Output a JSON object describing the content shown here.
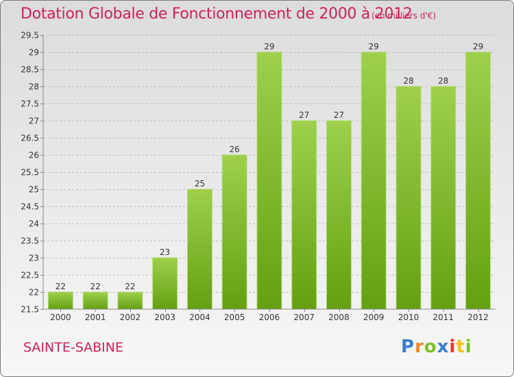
{
  "header": {
    "title": "Dotation Globale de Fonctionnement de 2000 à 2012",
    "subtitle": "(en milliers d'€)"
  },
  "footer": {
    "commune": "SAINTE-SABINE",
    "logo": "Proxiti"
  },
  "colors": {
    "accent": "#cc2255",
    "bar_light": "#9ed04c",
    "bar_dark": "#64a012"
  },
  "chart_data": {
    "type": "bar",
    "title": "Dotation Globale de Fonctionnement de 2000 à 2012",
    "subtitle": "(en milliers d'€)",
    "xlabel": "",
    "ylabel": "",
    "categories": [
      "2000",
      "2001",
      "2002",
      "2003",
      "2004",
      "2005",
      "2006",
      "2007",
      "2008",
      "2009",
      "2010",
      "2011",
      "2012"
    ],
    "values": [
      22,
      22,
      22,
      23,
      25,
      26,
      29,
      27,
      27,
      29,
      28,
      28,
      29
    ],
    "ylim": [
      21.5,
      29.5
    ],
    "yticks": [
      "21.5",
      "22",
      "22.5",
      "23",
      "23.5",
      "24",
      "24.5",
      "25",
      "25.5",
      "26",
      "26.5",
      "27",
      "27.5",
      "28",
      "28.5",
      "29",
      "29.5"
    ],
    "grid": "horizontal dashed",
    "data_labels": true
  }
}
